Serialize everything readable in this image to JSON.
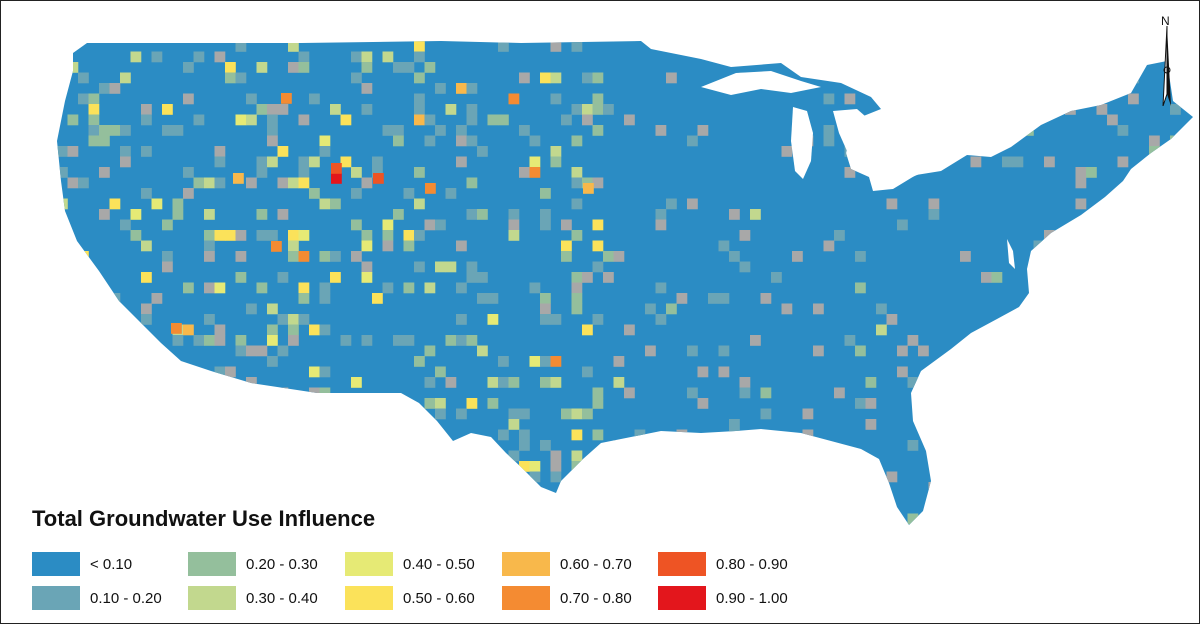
{
  "legend": {
    "title": "Total Groundwater Use Influence",
    "classes": [
      {
        "label": "< 0.10",
        "color": "#2b8cc4"
      },
      {
        "label": "0.10 - 0.20",
        "color": "#6aa5b6"
      },
      {
        "label": "0.20 - 0.30",
        "color": "#94bf9c"
      },
      {
        "label": "0.30 - 0.40",
        "color": "#c2d88e"
      },
      {
        "label": "0.40 - 0.50",
        "color": "#e6ea75"
      },
      {
        "label": "0.50 - 0.60",
        "color": "#fbe25a"
      },
      {
        "label": "0.60 - 0.70",
        "color": "#f8b84b"
      },
      {
        "label": "0.70 - 0.80",
        "color": "#f48b32"
      },
      {
        "label": "0.80 - 0.90",
        "color": "#ee5424"
      },
      {
        "label": "0.90 - 1.00",
        "color": "#e3161c"
      }
    ],
    "nodata_color": "#a8a8a8"
  },
  "north_arrow": {
    "label": "N"
  },
  "map": {
    "region": "Contiguous United States",
    "base_class": 0
  }
}
